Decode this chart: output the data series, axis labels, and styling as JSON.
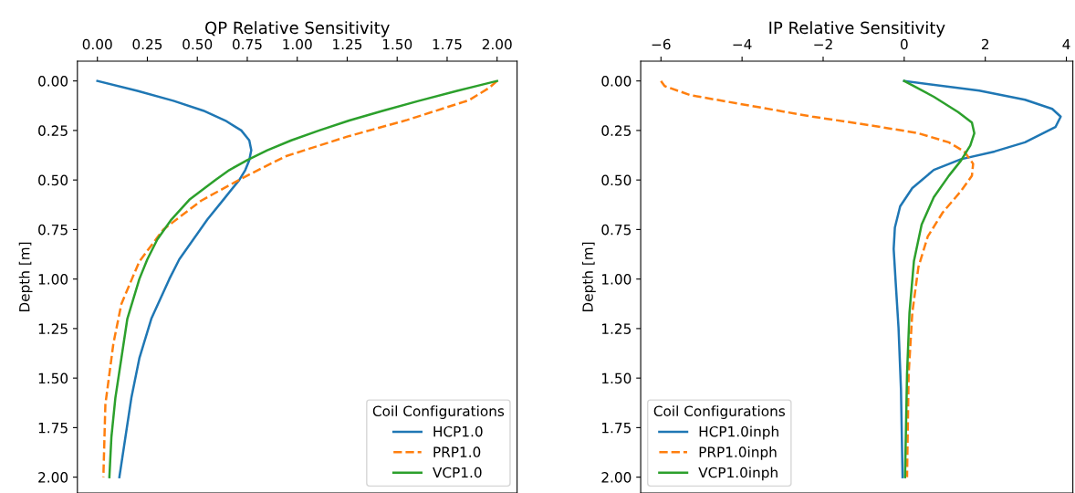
{
  "chart_data": [
    {
      "type": "line",
      "orientation": "horizontal",
      "xlabel": "QP Relative Sensitivity",
      "ylabel": "Depth [m]",
      "xlim": [
        -0.1,
        2.1
      ],
      "xticks": [
        {
          "value": 0,
          "label": "0.00"
        },
        {
          "value": 0.25,
          "label": "0.25"
        },
        {
          "value": 0.5,
          "label": "0.50"
        },
        {
          "value": 0.75,
          "label": "0.75"
        },
        {
          "value": 1,
          "label": "1.00"
        },
        {
          "value": 1.25,
          "label": "1.25"
        },
        {
          "value": 1.5,
          "label": "1.50"
        },
        {
          "value": 1.75,
          "label": "1.75"
        },
        {
          "value": 2,
          "label": "2.00"
        }
      ],
      "ylim": [
        2.08,
        -0.1
      ],
      "yticks": [
        {
          "value": 0,
          "label": "0.00"
        },
        {
          "value": 0.25,
          "label": "0.25"
        },
        {
          "value": 0.5,
          "label": "0.50"
        },
        {
          "value": 0.75,
          "label": "0.75"
        },
        {
          "value": 1,
          "label": "1.00"
        },
        {
          "value": 1.25,
          "label": "1.25"
        },
        {
          "value": 1.5,
          "label": "1.50"
        },
        {
          "value": 1.75,
          "label": "1.75"
        },
        {
          "value": 2,
          "label": "2.00"
        }
      ],
      "legend": "bottom right",
      "legend_title": "Coil Configurations",
      "grid": false,
      "series": [
        {
          "name": "HCP1.0",
          "color": "#1f77b4",
          "line_style": "solid",
          "x": [
            0,
            0.05,
            0.1,
            0.15,
            0.2,
            0.25,
            0.3,
            0.35,
            0.4,
            0.45,
            0.5,
            0.6,
            0.7,
            0.8,
            0.9,
            1.0,
            1.2,
            1.4,
            1.6,
            1.8,
            2.0
          ],
          "values": [
            0,
            0.2,
            0.38,
            0.53,
            0.64,
            0.72,
            0.76,
            0.77,
            0.76,
            0.74,
            0.71,
            0.63,
            0.55,
            0.48,
            0.41,
            0.36,
            0.27,
            0.21,
            0.17,
            0.14,
            0.11
          ]
        },
        {
          "name": "PRP1.0",
          "color": "#ff7f0e",
          "line_style": "dashed",
          "x": [
            0,
            0.035,
            0.097,
            0.197,
            0.281,
            0.381,
            0.488,
            0.604,
            0.75,
            0.911,
            1.126,
            1.326,
            1.633,
            2.0
          ],
          "values": [
            2.0,
            1.96,
            1.86,
            1.55,
            1.25,
            0.94,
            0.73,
            0.52,
            0.33,
            0.21,
            0.12,
            0.08,
            0.04,
            0.03
          ]
        },
        {
          "name": "VCP1.0",
          "color": "#2ca02c",
          "line_style": "solid",
          "x": [
            0,
            0.05,
            0.1,
            0.15,
            0.2,
            0.25,
            0.3,
            0.35,
            0.4,
            0.45,
            0.5,
            0.6,
            0.7,
            0.8,
            0.9,
            1.0,
            1.2,
            1.4,
            1.6,
            1.8,
            2.0
          ],
          "values": [
            2.0,
            1.8,
            1.61,
            1.43,
            1.26,
            1.11,
            0.97,
            0.85,
            0.75,
            0.66,
            0.59,
            0.46,
            0.37,
            0.3,
            0.25,
            0.21,
            0.15,
            0.12,
            0.09,
            0.07,
            0.06
          ]
        }
      ]
    },
    {
      "type": "line",
      "orientation": "horizontal",
      "xlabel": "IP Relative Sensitivity",
      "ylabel": "Depth [m]",
      "xlim": [
        -6.5,
        4.16
      ],
      "xticks": [
        {
          "value": -6,
          "label": "−6"
        },
        {
          "value": -4,
          "label": "−4"
        },
        {
          "value": -2,
          "label": "−2"
        },
        0,
        2,
        4
      ],
      "ylim": [
        2.08,
        -0.1
      ],
      "yticks": [
        {
          "value": 0,
          "label": "0.00"
        },
        {
          "value": 0.25,
          "label": "0.25"
        },
        {
          "value": 0.5,
          "label": "0.50"
        },
        {
          "value": 0.75,
          "label": "0.75"
        },
        {
          "value": 1,
          "label": "1.00"
        },
        {
          "value": 1.25,
          "label": "1.25"
        },
        {
          "value": 1.5,
          "label": "1.50"
        },
        {
          "value": 1.75,
          "label": "1.75"
        },
        {
          "value": 2,
          "label": "2.00"
        }
      ],
      "legend": "bottom left",
      "legend_title": "Coil Configurations",
      "grid": false,
      "series": [
        {
          "name": "HCP1.0inph",
          "color": "#1f77b4",
          "line_style": "solid",
          "x": [
            0,
            0.049,
            0.095,
            0.141,
            0.18,
            0.233,
            0.31,
            0.356,
            0.395,
            0.449,
            0.541,
            0.633,
            0.74,
            0.848,
            1.017,
            1.247,
            1.555,
            2.0
          ],
          "values": [
            0,
            1.85,
            2.98,
            3.65,
            3.86,
            3.73,
            2.98,
            2.23,
            1.4,
            0.73,
            0.2,
            -0.1,
            -0.23,
            -0.26,
            -0.21,
            -0.14,
            -0.08,
            -0.04
          ]
        },
        {
          "name": "PRP1.0inph",
          "color": "#ff7f0e",
          "line_style": "dashed",
          "x": [
            0,
            0.026,
            0.072,
            0.126,
            0.18,
            0.226,
            0.264,
            0.31,
            0.356,
            0.418,
            0.479,
            0.556,
            0.664,
            0.786,
            0.94,
            1.17,
            1.478,
            2.0
          ],
          "values": [
            -6.0,
            -5.91,
            -5.27,
            -3.77,
            -2.27,
            -0.77,
            0.35,
            1.1,
            1.48,
            1.7,
            1.67,
            1.4,
            0.95,
            0.58,
            0.35,
            0.2,
            0.11,
            0.07
          ]
        },
        {
          "name": "VCP1.0inph",
          "color": "#2ca02c",
          "line_style": "solid",
          "x": [
            0,
            0.08,
            0.157,
            0.21,
            0.264,
            0.326,
            0.402,
            0.479,
            0.587,
            0.725,
            0.909,
            1.17,
            1.478,
            2.0
          ],
          "values": [
            0,
            0.73,
            1.33,
            1.67,
            1.73,
            1.63,
            1.4,
            1.1,
            0.73,
            0.43,
            0.24,
            0.13,
            0.07,
            0.02
          ]
        }
      ]
    }
  ]
}
